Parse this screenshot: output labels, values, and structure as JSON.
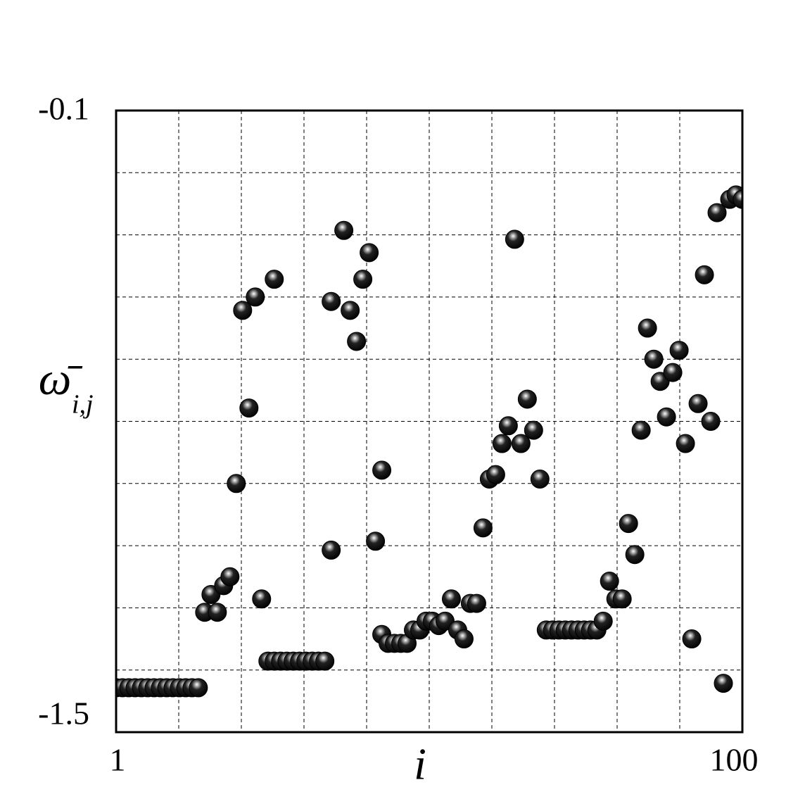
{
  "chart_data": {
    "type": "scatter",
    "xlabel": "i",
    "ylabel": {
      "symbol": "ω̄",
      "subscript": "i,j"
    },
    "xlim": [
      1,
      100
    ],
    "xticks": [
      1,
      100
    ],
    "ylim": [
      -1.5,
      -0.1
    ],
    "yticks": [
      -1.5,
      -0.1
    ],
    "grid": true,
    "color": "#000000",
    "x": [
      1,
      2,
      3,
      4,
      5,
      6,
      7,
      8,
      9,
      10,
      11,
      12,
      13,
      14,
      15,
      16,
      17,
      18,
      19,
      20,
      21,
      22,
      23,
      24,
      25,
      26,
      26,
      27,
      28,
      29,
      30,
      31,
      32,
      33,
      34,
      35,
      35,
      37,
      38,
      39,
      40,
      41,
      42,
      43,
      43,
      44,
      45,
      46,
      47,
      48,
      49,
      50,
      51,
      52,
      53,
      54,
      55,
      56,
      57,
      58,
      59,
      60,
      61,
      62,
      63,
      64,
      65,
      66,
      67,
      68,
      69,
      70,
      71,
      72,
      73,
      74,
      75,
      76,
      77,
      78,
      79,
      80,
      81,
      82,
      83,
      84,
      85,
      86,
      87,
      88,
      89,
      90,
      91,
      92,
      93,
      94,
      95,
      96,
      97,
      98,
      99,
      100
    ],
    "values": [
      -1.4,
      -1.4,
      -1.4,
      -1.4,
      -1.4,
      -1.4,
      -1.4,
      -1.4,
      -1.4,
      -1.4,
      -1.4,
      -1.4,
      -1.4,
      -1.4,
      -1.23,
      -1.19,
      -1.23,
      -1.17,
      -1.15,
      -0.94,
      -0.55,
      -0.77,
      -0.52,
      -1.2,
      -1.34,
      -1.34,
      -0.48,
      -1.34,
      -1.34,
      -1.34,
      -1.34,
      -1.34,
      -1.34,
      -1.34,
      -1.34,
      -1.09,
      -0.53,
      -0.37,
      -0.55,
      -0.62,
      -0.48,
      -0.42,
      -1.07,
      -0.91,
      -1.28,
      -1.3,
      -1.3,
      -1.3,
      -1.3,
      -1.27,
      -1.27,
      -1.25,
      -1.25,
      -1.26,
      -1.25,
      -1.2,
      -1.27,
      -1.29,
      -1.21,
      -1.21,
      -1.04,
      -0.93,
      -0.92,
      -0.85,
      -0.81,
      -0.39,
      -0.85,
      -0.75,
      -0.82,
      -0.93,
      -1.27,
      -1.27,
      -1.27,
      -1.27,
      -1.27,
      -1.27,
      -1.27,
      -1.27,
      -1.27,
      -1.25,
      -1.16,
      -1.2,
      -1.2,
      -1.03,
      -1.1,
      -0.82,
      -0.59,
      -0.66,
      -0.71,
      -0.79,
      -0.69,
      -0.64,
      -0.85,
      -1.29,
      -0.76,
      -0.47,
      -0.8,
      -0.33,
      -1.39,
      -0.3,
      -0.29,
      -0.3
    ]
  }
}
